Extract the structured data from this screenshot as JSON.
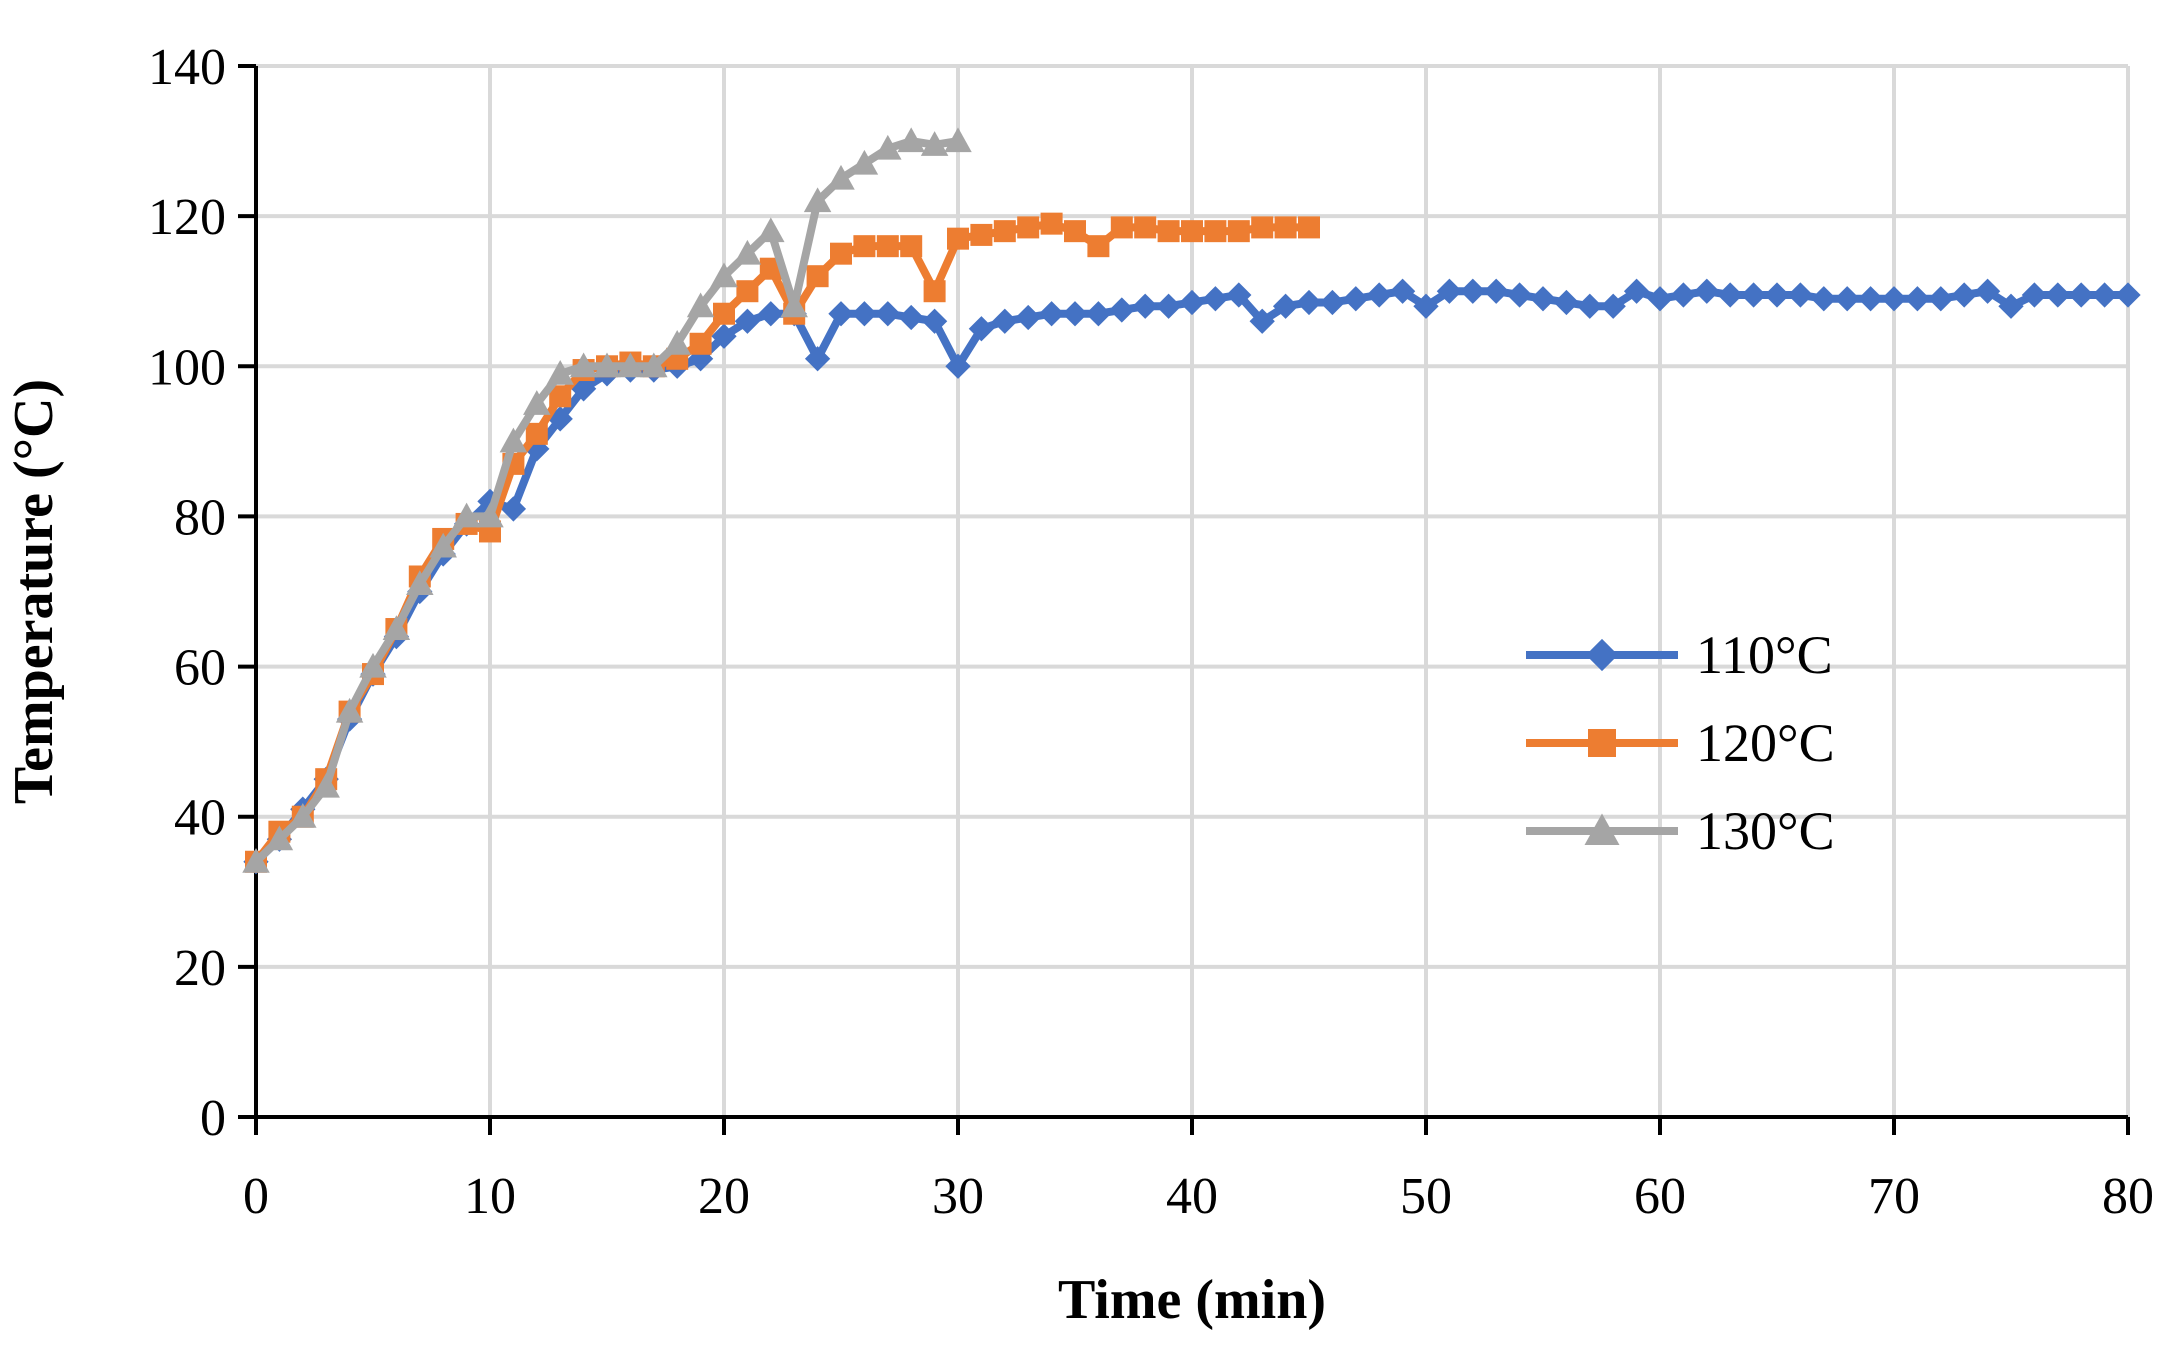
{
  "chart_data": {
    "type": "line",
    "title": "",
    "xlabel": "Time (min)",
    "ylabel": "Temperature (°C)",
    "xlim": [
      0,
      80
    ],
    "ylim": [
      0,
      140
    ],
    "xticks": [
      0,
      10,
      20,
      30,
      40,
      50,
      60,
      70,
      80
    ],
    "yticks": [
      0,
      20,
      40,
      60,
      80,
      100,
      120,
      140
    ],
    "grid": true,
    "legend_position": "center-right",
    "series": [
      {
        "name": "110°C",
        "color": "#4472C4",
        "marker": "diamond",
        "x": [
          0,
          1,
          2,
          3,
          4,
          5,
          6,
          7,
          8,
          9,
          10,
          11,
          12,
          13,
          14,
          15,
          16,
          17,
          18,
          19,
          20,
          21,
          22,
          23,
          24,
          25,
          26,
          27,
          28,
          29,
          30,
          31,
          32,
          33,
          34,
          35,
          36,
          37,
          38,
          39,
          40,
          41,
          42,
          43,
          44,
          45,
          46,
          47,
          48,
          49,
          50,
          51,
          52,
          53,
          54,
          55,
          56,
          57,
          58,
          59,
          60,
          61,
          62,
          63,
          64,
          65,
          66,
          67,
          68,
          69,
          70,
          71,
          72,
          73,
          74,
          75,
          76,
          77,
          78,
          79,
          80
        ],
        "values": [
          34,
          37,
          41,
          45,
          53,
          59,
          64,
          70,
          75,
          79,
          82,
          81,
          89,
          93,
          97,
          99,
          99.5,
          99.5,
          100,
          101,
          104,
          106,
          107,
          107,
          101,
          107,
          107,
          107,
          106.5,
          106,
          100,
          105,
          106,
          106.5,
          107,
          107,
          107,
          107.5,
          108,
          108,
          108.5,
          109,
          109.5,
          106,
          108,
          108.5,
          108.5,
          109,
          109.5,
          110,
          108,
          110,
          110,
          110,
          109.5,
          109,
          108.5,
          108,
          108,
          110,
          109,
          109.5,
          110,
          109.5,
          109.5,
          109.5,
          109.5,
          109,
          109,
          109,
          109,
          109,
          109,
          109.5,
          110,
          108,
          109.5,
          109.5,
          109.5,
          109.5,
          109.5
        ]
      },
      {
        "name": "120°C",
        "color": "#ED7D31",
        "marker": "square",
        "x": [
          0,
          1,
          2,
          3,
          4,
          5,
          6,
          7,
          8,
          9,
          10,
          11,
          12,
          13,
          14,
          15,
          16,
          17,
          18,
          19,
          20,
          21,
          22,
          23,
          24,
          25,
          26,
          27,
          28,
          29,
          30,
          31,
          32,
          33,
          34,
          35,
          36,
          37,
          38,
          39,
          40,
          41,
          42,
          43,
          44,
          45
        ],
        "values": [
          34,
          38,
          40,
          45,
          54,
          59,
          65,
          72,
          77,
          79,
          78,
          87,
          91,
          96,
          99.5,
          100,
          100.5,
          100,
          101,
          103,
          107,
          110,
          113,
          107,
          112,
          115,
          116,
          116,
          116,
          110,
          117,
          117.5,
          118,
          118.5,
          119,
          118,
          116,
          118.5,
          118.5,
          118,
          118,
          118,
          118,
          118.5,
          118.5,
          118.5
        ]
      },
      {
        "name": "130°C",
        "color": "#A5A5A5",
        "marker": "triangle",
        "x": [
          0,
          1,
          2,
          3,
          4,
          5,
          6,
          7,
          8,
          9,
          10,
          11,
          12,
          13,
          14,
          15,
          16,
          17,
          18,
          19,
          20,
          21,
          22,
          23,
          24,
          25,
          26,
          27,
          28,
          29,
          30
        ],
        "values": [
          34,
          37,
          40,
          44,
          54,
          60,
          65,
          71,
          76,
          80,
          80,
          90,
          95,
          99,
          100,
          100,
          100,
          100,
          103,
          108,
          112,
          115,
          118,
          108,
          122,
          125,
          127,
          129,
          130,
          129.5,
          130
        ]
      }
    ]
  }
}
